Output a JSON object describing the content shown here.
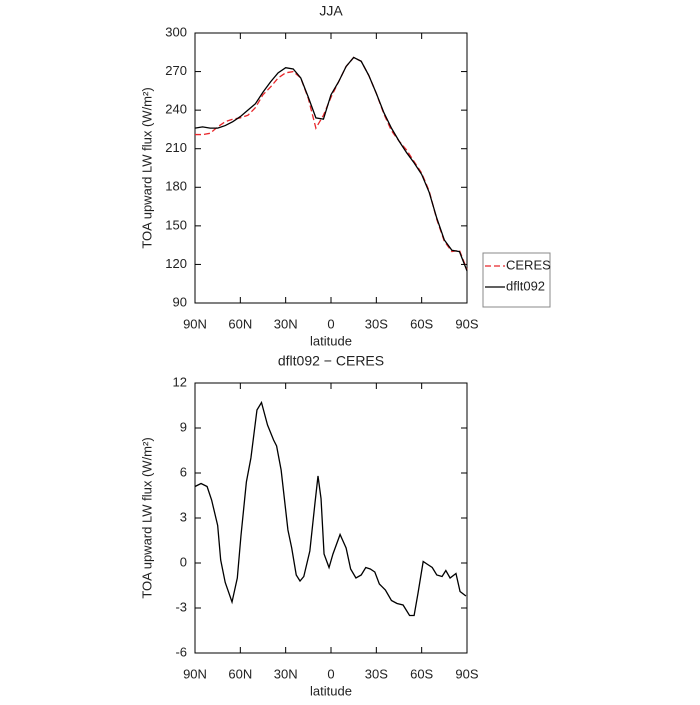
{
  "chart_data": [
    {
      "type": "line",
      "title": "JJA",
      "xlabel": "latitude",
      "ylabel": "TOA upward LW flux (W/m²)",
      "x": [
        90,
        85,
        80,
        75,
        70,
        65,
        60,
        55,
        50,
        45,
        40,
        35,
        30,
        25,
        20,
        15,
        10,
        5,
        0,
        -5,
        -10,
        -15,
        -20,
        -25,
        -30,
        -35,
        -40,
        -45,
        -50,
        -55,
        -60,
        -65,
        -70,
        -75,
        -80,
        -85,
        -90
      ],
      "series": [
        {
          "name": "CERES",
          "color": "#e8262a",
          "linestyle": "dashed",
          "values": [
            221,
            221,
            222,
            227,
            231,
            233,
            234,
            236,
            242,
            252,
            258,
            265,
            269,
            270,
            265,
            249,
            226,
            236,
            250,
            262,
            274,
            281,
            278,
            267,
            253,
            237,
            224,
            216,
            209,
            200,
            191,
            177,
            155,
            138,
            130,
            131,
            116
          ]
        },
        {
          "name": "dflt092",
          "color": "#000000",
          "linestyle": "solid",
          "values": [
            226,
            227,
            226,
            226,
            228,
            231,
            235,
            240,
            245,
            254,
            262,
            269,
            273,
            272,
            265,
            250,
            234,
            233,
            252,
            262,
            274,
            281,
            278,
            267,
            253,
            238,
            226,
            216,
            207,
            199,
            190,
            176,
            156,
            139,
            131,
            130,
            115
          ]
        }
      ],
      "xlim": [
        90,
        -90
      ],
      "xticks": [
        {
          "value": 90,
          "label": "90N"
        },
        {
          "value": 60,
          "label": "60N"
        },
        {
          "value": 30,
          "label": "30N"
        },
        0,
        {
          "value": -30,
          "label": "30S"
        },
        {
          "value": -60,
          "label": "60S"
        },
        {
          "value": -90,
          "label": "90S"
        }
      ],
      "ylim": [
        90,
        300
      ],
      "yticks": [
        90,
        120,
        150,
        180,
        210,
        240,
        270,
        300
      ],
      "legend": "right"
    },
    {
      "type": "line",
      "title": "dflt092 − CERES",
      "xlabel": "latitude",
      "ylabel": "TOA upward LW flux (W/m²)",
      "x": [
        90,
        86,
        82,
        79,
        75,
        73,
        70,
        65.5,
        62,
        59.6,
        56,
        53,
        49,
        46,
        42,
        38,
        36,
        33,
        28.5,
        26,
        23,
        20.5,
        18,
        14,
        10.6,
        8.6,
        6.6,
        4.6,
        1.3,
        -1.3,
        -6,
        -10,
        -13,
        -16.5,
        -20,
        -23,
        -26,
        -29,
        -32,
        -36,
        -40,
        -43.7,
        -47.7,
        -52,
        -55,
        -57.6,
        -61,
        -64,
        -67,
        -70,
        -73.5,
        -76,
        -78.8,
        -82.7,
        -85.4,
        -89.3
      ],
      "series": [
        {
          "color": "#000000",
          "linestyle": "solid",
          "values": [
            5.1,
            5.3,
            5.1,
            4.2,
            2.5,
            0.2,
            -1.3,
            -2.6,
            -1.0,
            1.8,
            5.4,
            7.0,
            10.2,
            10.7,
            9.2,
            8.2,
            7.8,
            6.2,
            2.2,
            1.0,
            -0.8,
            -1.2,
            -0.9,
            0.8,
            4.0,
            5.8,
            4.3,
            0.6,
            -0.3,
            0.6,
            1.9,
            1.0,
            -0.4,
            -1.0,
            -0.8,
            -0.3,
            -0.4,
            -0.6,
            -1.4,
            -1.8,
            -2.5,
            -2.7,
            -2.8,
            -3.5,
            -3.5,
            -2.0,
            0.1,
            -0.1,
            -0.3,
            -0.8,
            -0.9,
            -0.5,
            -1.0,
            -0.7,
            -1.9,
            -2.2
          ]
        }
      ],
      "xlim": [
        90,
        -90
      ],
      "xticks": [
        {
          "value": 90,
          "label": "90N"
        },
        {
          "value": 60,
          "label": "60N"
        },
        {
          "value": 30,
          "label": "30N"
        },
        0,
        {
          "value": -30,
          "label": "30S"
        },
        {
          "value": -60,
          "label": "60S"
        },
        {
          "value": -90,
          "label": "90S"
        }
      ],
      "ylim": [
        -6,
        12
      ],
      "yticks": [
        -6,
        -3,
        0,
        3,
        6,
        9,
        12
      ]
    }
  ]
}
